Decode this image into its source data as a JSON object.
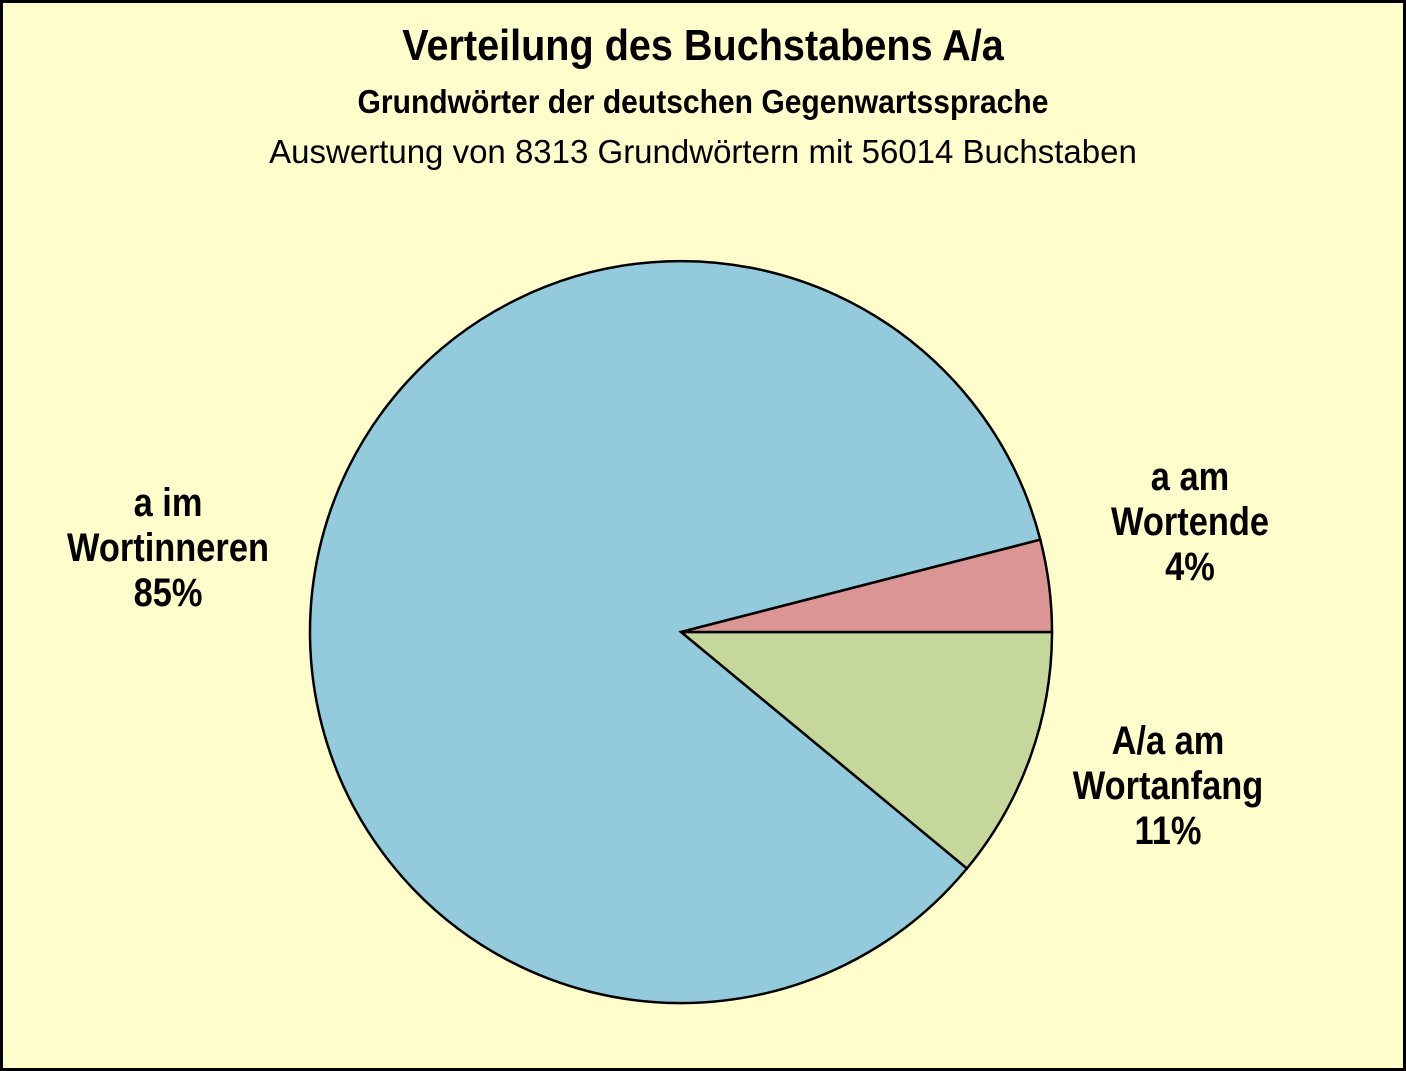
{
  "page": {
    "background_color": "#FFFDCC",
    "border_color": "#000000"
  },
  "header": {
    "title": "Verteilung des Buchstabens A/a",
    "subtitle": "Grundwörter der deutschen Gegenwartssprache",
    "note": "Auswertung von 8313 Grundwörtern mit 56014 Buchstaben"
  },
  "chart_data": {
    "type": "pie",
    "title": "Verteilung des Buchstabens A/a",
    "subtitle": "Grundwörter der deutschen Gegenwartssprache",
    "note": "Auswertung von 8313 Grundwörtern mit 56014 Buchstaben",
    "unit": "percent",
    "total_words": 8313,
    "total_letters": 56014,
    "start_angle_deg": 0,
    "direction": "clockwise",
    "legend": "none",
    "outline_color": "#000000",
    "categories": [
      "A/a am Wortanfang",
      "a im Wortinneren",
      "a am Wortende"
    ],
    "values": [
      11,
      85,
      4
    ],
    "slices": [
      {
        "name": "A/a am Wortanfang",
        "value_pct": 11,
        "color": "#C5D79B",
        "label_line1": "A/a am",
        "label_line2": "Wortanfang",
        "label_value": "11%"
      },
      {
        "name": "a im Wortinneren",
        "value_pct": 85,
        "color": "#93CBDD",
        "label_line1": "a im",
        "label_line2": "Wortinneren",
        "label_value": "85%"
      },
      {
        "name": "a am Wortende",
        "value_pct": 4,
        "color": "#DB9595",
        "label_line1": "a am",
        "label_line2": "Wortende",
        "label_value": "4%"
      }
    ]
  }
}
